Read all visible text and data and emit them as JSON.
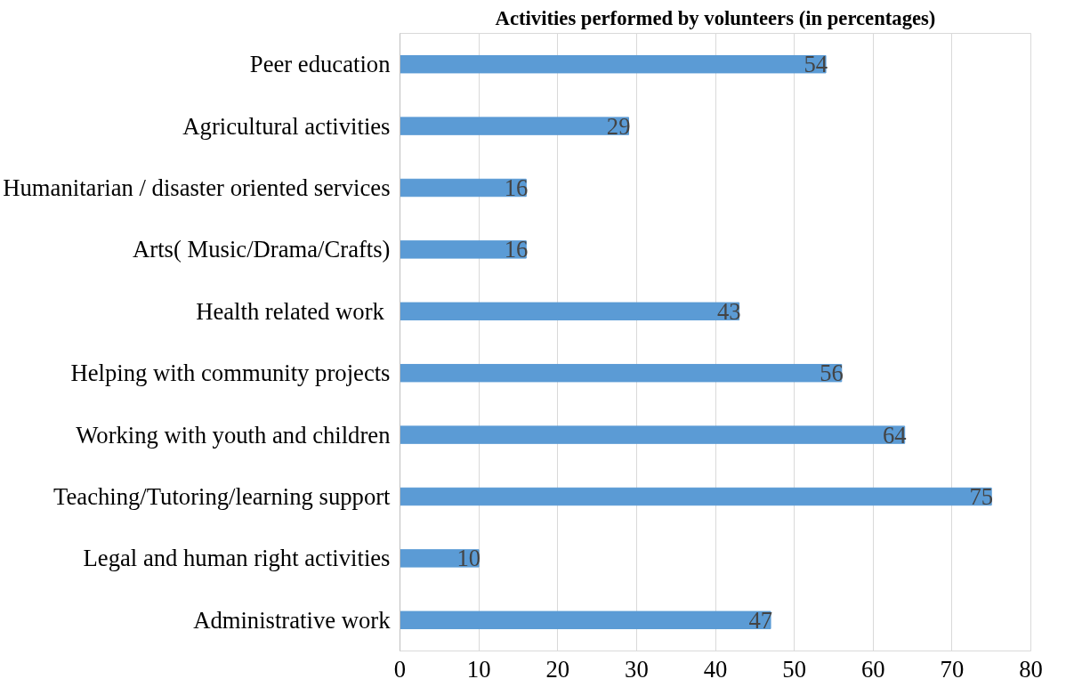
{
  "chart_data": {
    "type": "bar",
    "orientation": "horizontal",
    "title": "Activities performed by volunteers (in percentages)",
    "categories": [
      "Peer education",
      "Agricultural activities",
      "Humanitarian / disaster oriented services",
      "Arts( Music/Drama/Crafts)",
      "Health related work ",
      "Helping with community projects",
      "Working with youth and children",
      "Teaching/Tutoring/learning support",
      "Legal and human right activities",
      "Administrative work"
    ],
    "values": [
      54,
      29,
      16,
      16,
      43,
      56,
      64,
      75,
      10,
      47
    ],
    "color": "#5b9bd5",
    "xlim": [
      0,
      80
    ],
    "xticks": [
      0,
      10,
      20,
      30,
      40,
      50,
      60,
      70,
      80
    ],
    "grid": "x",
    "data_labels": true
  }
}
